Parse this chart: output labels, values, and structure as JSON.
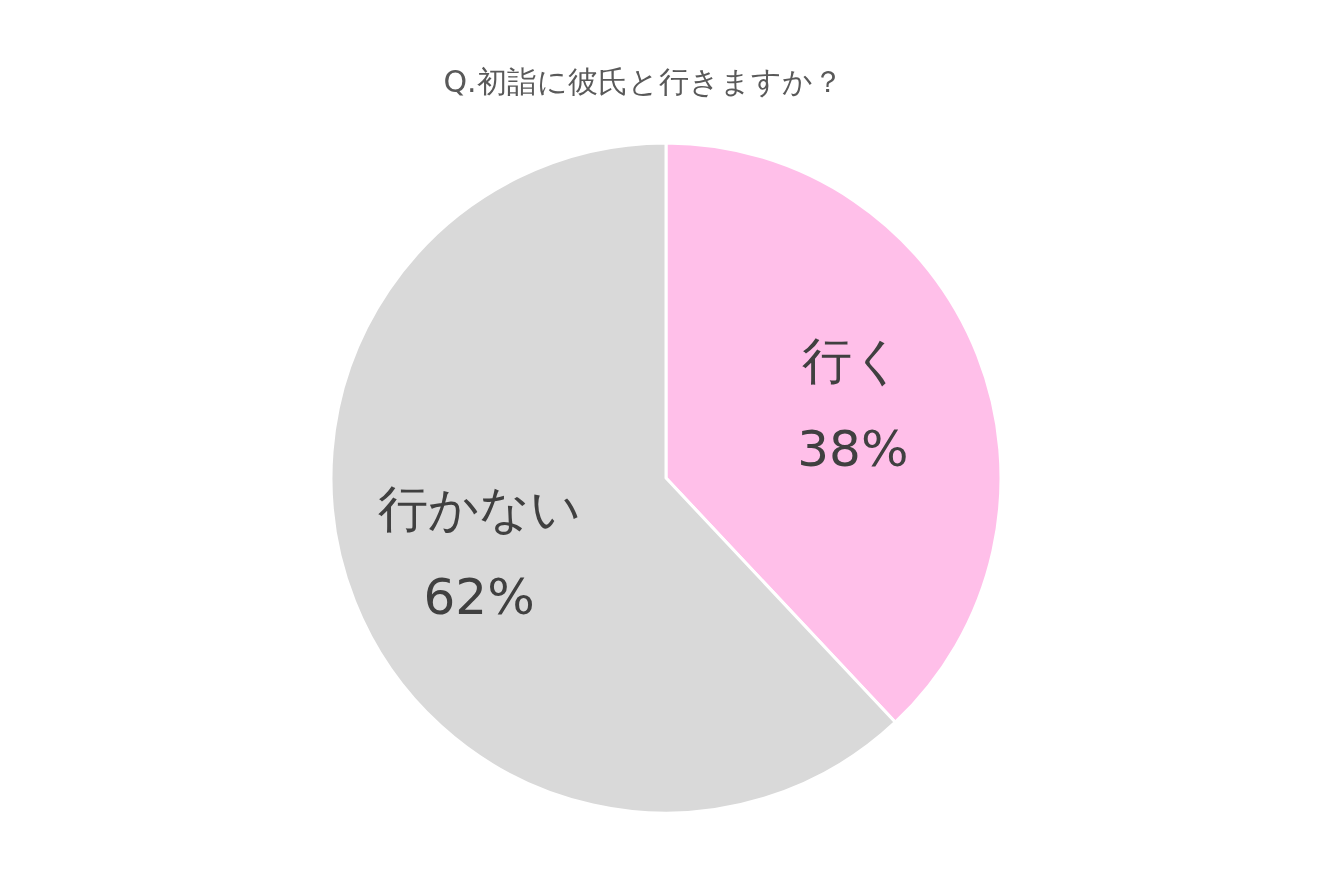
{
  "chart_data": {
    "type": "pie",
    "title": "Q.初詣に彼氏と行きますか？",
    "categories": [
      "行く",
      "行かない"
    ],
    "values": [
      38,
      62
    ],
    "colors": [
      "#ffbfe9",
      "#d9d9d9"
    ],
    "value_labels": [
      "38%",
      "62%"
    ]
  }
}
